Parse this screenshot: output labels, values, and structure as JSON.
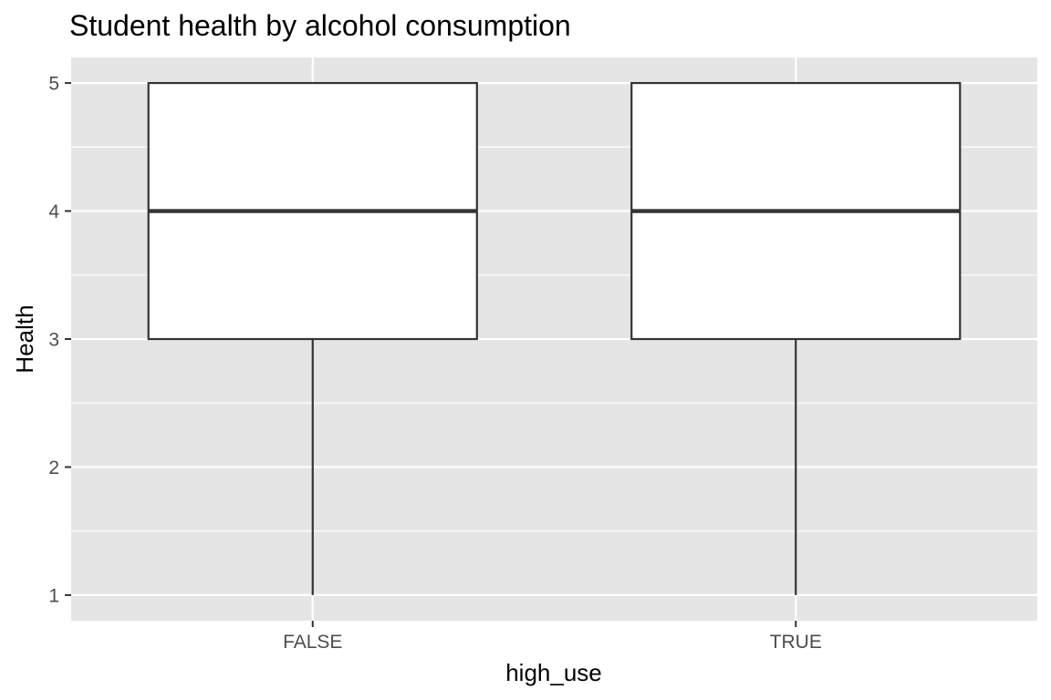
{
  "chart_data": {
    "type": "boxplot",
    "title": "Student health by alcohol consumption",
    "xlabel": "high_use",
    "ylabel": "Health",
    "categories": [
      "FALSE",
      "TRUE"
    ],
    "boxes": [
      {
        "category": "FALSE",
        "min": 1,
        "q1": 3,
        "median": 4,
        "q3": 5,
        "max": 5
      },
      {
        "category": "TRUE",
        "min": 1,
        "q1": 3,
        "median": 4,
        "q3": 5,
        "max": 5
      }
    ],
    "ylim": [
      0.8,
      5.2
    ],
    "y_ticks": [
      1,
      2,
      3,
      4,
      5
    ],
    "y_tick_labels": [
      "1",
      "2",
      "3",
      "4",
      "5"
    ],
    "grid": true,
    "colors": {
      "panel_background": "#e5e5e5",
      "grid": "#ffffff",
      "box_fill": "#ffffff",
      "box_line": "#333333",
      "tick_text": "#4d4d4d",
      "tick_mark": "#333333"
    }
  }
}
